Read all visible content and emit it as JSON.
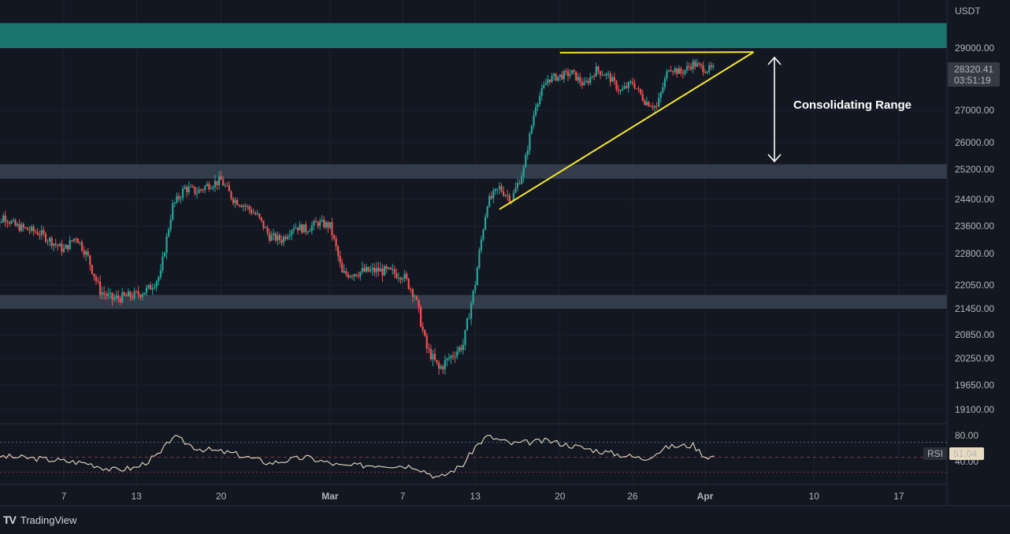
{
  "brand": {
    "logo": "TV",
    "name": "TradingView"
  },
  "colors": {
    "background": "#131722",
    "grid": "#1e222d",
    "up": "#26a69a",
    "down": "#ef5350",
    "resistance_zone": "#1b7a74",
    "support_zone": "#3a4352",
    "triangle": "#f5e52a",
    "rsi_line": "#e8dcc0",
    "annotation": "#ffffff",
    "price_tag_bg": "#363a45"
  },
  "chart_data": [
    {
      "type": "candlestick",
      "symbol_currency": "USDT",
      "y_ticks": [
        29000,
        27000,
        26000,
        25200,
        24400,
        23600,
        22800,
        22050,
        21450,
        20850,
        20250,
        19650,
        19100
      ],
      "y_tick_labels": [
        "29000.00",
        "27000.00",
        "26000.00",
        "25200.00",
        "24400.00",
        "23600.00",
        "22800.00",
        "22050.00",
        "21450.00",
        "20850.00",
        "20250.00",
        "19650.00",
        "19100.00"
      ],
      "x_tick_labels": [
        "7",
        "13",
        "20",
        "Mar",
        "7",
        "13",
        "20",
        "26",
        "Apr",
        "10",
        "17"
      ],
      "last_price": "28320.41",
      "countdown": "03:51:19",
      "zones": [
        {
          "name": "resistance",
          "from": 29000,
          "to": 29800
        },
        {
          "name": "support-upper",
          "from": 24950,
          "to": 25350
        },
        {
          "name": "support-lower",
          "from": 21450,
          "to": 21800
        }
      ],
      "annotations": {
        "label": "Consolidating Range"
      },
      "close_path": [
        [
          "2023-02-01",
          23200
        ],
        [
          "2023-02-02",
          23900
        ],
        [
          "2023-02-03",
          23600
        ],
        [
          "2023-02-05",
          23400
        ],
        [
          "2023-02-07",
          22900
        ],
        [
          "2023-02-08",
          23300
        ],
        [
          "2023-02-09",
          22700
        ],
        [
          "2023-02-10",
          21900
        ],
        [
          "2023-02-11",
          21700
        ],
        [
          "2023-02-13",
          21800
        ],
        [
          "2023-02-14",
          21950
        ],
        [
          "2023-02-15",
          22300
        ],
        [
          "2023-02-16",
          24200
        ],
        [
          "2023-02-17",
          24700
        ],
        [
          "2023-02-18",
          24600
        ],
        [
          "2023-02-19",
          24800
        ],
        [
          "2023-02-20",
          24900
        ],
        [
          "2023-02-21",
          24400
        ],
        [
          "2023-02-22",
          24200
        ],
        [
          "2023-02-23",
          23900
        ],
        [
          "2023-02-24",
          23300
        ],
        [
          "2023-02-25",
          23200
        ],
        [
          "2023-02-26",
          23600
        ],
        [
          "2023-02-27",
          23500
        ],
        [
          "2023-02-28",
          23700
        ],
        [
          "2023-03-01",
          23600
        ],
        [
          "2023-03-02",
          22300
        ],
        [
          "2023-03-03",
          22350
        ],
        [
          "2023-03-05",
          22400
        ],
        [
          "2023-03-07",
          22300
        ],
        [
          "2023-03-08",
          21800
        ],
        [
          "2023-03-09",
          20500
        ],
        [
          "2023-03-10",
          20000
        ],
        [
          "2023-03-11",
          20300
        ],
        [
          "2023-03-12",
          20600
        ],
        [
          "2023-03-13",
          22100
        ],
        [
          "2023-03-14",
          24300
        ],
        [
          "2023-03-15",
          24700
        ],
        [
          "2023-03-16",
          24400
        ],
        [
          "2023-03-17",
          25200
        ],
        [
          "2023-03-18",
          27200
        ],
        [
          "2023-03-19",
          28000
        ],
        [
          "2023-03-20",
          28100
        ],
        [
          "2023-03-21",
          28200
        ],
        [
          "2023-03-22",
          27800
        ],
        [
          "2023-03-23",
          28300
        ],
        [
          "2023-03-24",
          28100
        ],
        [
          "2023-03-25",
          27600
        ],
        [
          "2023-03-26",
          27900
        ],
        [
          "2023-03-27",
          27300
        ],
        [
          "2023-03-28",
          27100
        ],
        [
          "2023-03-29",
          28400
        ],
        [
          "2023-03-30",
          28200
        ],
        [
          "2023-03-31",
          28500
        ],
        [
          "2023-04-01",
          28320
        ]
      ],
      "triangle": {
        "top_start": [
          "2023-03-20",
          28850
        ],
        "top_end": [
          "2023-04-05",
          28870
        ],
        "bottom_start": [
          "2023-03-15",
          24100
        ],
        "bottom_end": [
          "2023-04-05",
          28870
        ]
      }
    },
    {
      "type": "line",
      "name": "RSI",
      "value_label": "RSI",
      "value": "51.04",
      "y_tick_labels": [
        "80.00",
        "40.00"
      ],
      "levels": [
        70,
        50,
        30
      ],
      "path": [
        [
          "2023-02-01",
          52
        ],
        [
          "2023-02-05",
          48
        ],
        [
          "2023-02-09",
          42
        ],
        [
          "2023-02-11",
          33
        ],
        [
          "2023-02-13",
          36
        ],
        [
          "2023-02-15",
          55
        ],
        [
          "2023-02-16",
          78
        ],
        [
          "2023-02-18",
          62
        ],
        [
          "2023-02-21",
          55
        ],
        [
          "2023-02-24",
          42
        ],
        [
          "2023-02-27",
          50
        ],
        [
          "2023-03-02",
          38
        ],
        [
          "2023-03-05",
          40
        ],
        [
          "2023-03-08",
          38
        ],
        [
          "2023-03-10",
          22
        ],
        [
          "2023-03-12",
          40
        ],
        [
          "2023-03-13",
          64
        ],
        [
          "2023-03-14",
          78
        ],
        [
          "2023-03-16",
          68
        ],
        [
          "2023-03-19",
          72
        ],
        [
          "2023-03-22",
          62
        ],
        [
          "2023-03-24",
          56
        ],
        [
          "2023-03-27",
          48
        ],
        [
          "2023-03-29",
          64
        ],
        [
          "2023-03-31",
          66
        ],
        [
          "2023-04-01",
          51
        ]
      ]
    }
  ]
}
